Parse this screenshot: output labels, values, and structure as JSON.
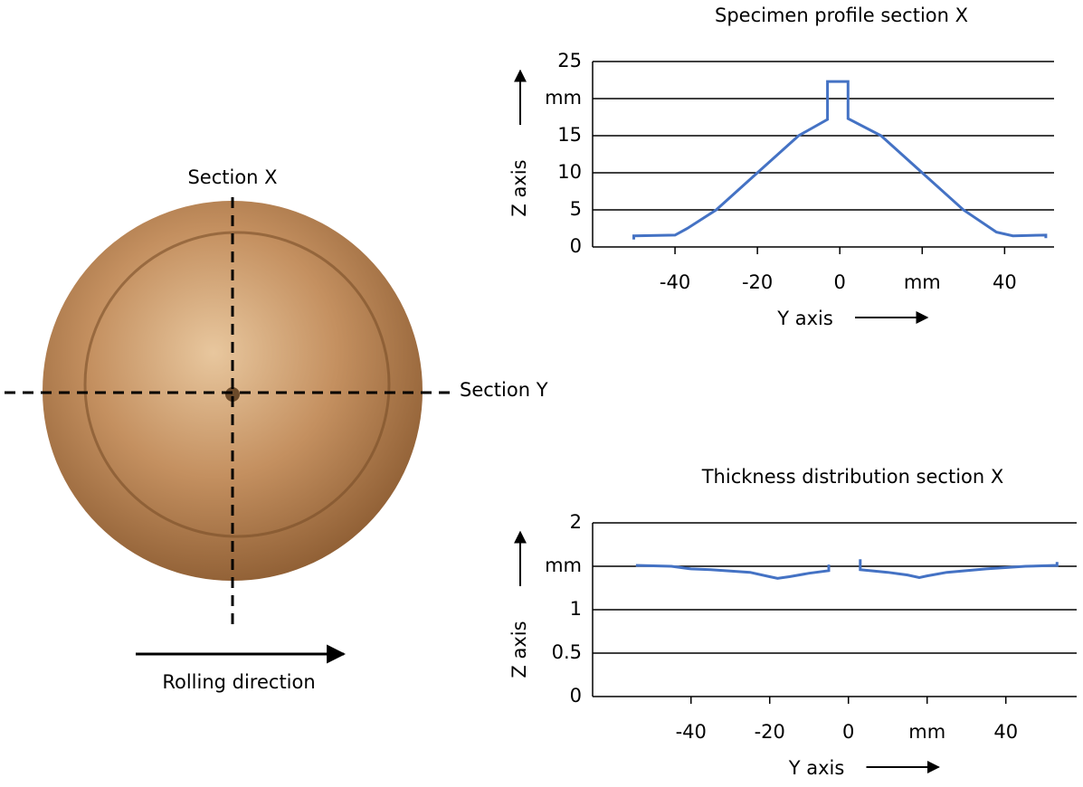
{
  "photo": {
    "section_x": "Section X",
    "section_y": "Section Y",
    "rolling": "Rolling direction"
  },
  "chart_data": [
    {
      "type": "line",
      "title": "Specimen profile section X",
      "x_label": "Y axis",
      "y_label": "Z axis",
      "color": "#4472c4",
      "grid": true,
      "x": [
        -50,
        -50,
        -40,
        -37,
        -30,
        -20,
        -10,
        -3,
        -3,
        2,
        2,
        10,
        20,
        30,
        38,
        42,
        50,
        50
      ],
      "values": [
        1,
        1.5,
        1.6,
        2.5,
        5,
        10,
        15,
        17.2,
        22.3,
        22.3,
        17.3,
        15,
        10,
        5,
        2,
        1.5,
        1.6,
        1.2
      ],
      "xlim": [
        -60,
        52
      ],
      "ylim": [
        0,
        25
      ],
      "xticks": [
        -40,
        -20,
        0,
        {
          "value": 20,
          "label": "mm"
        },
        40
      ],
      "yticks": [
        0,
        5,
        10,
        15,
        {
          "value": 20,
          "label": "mm"
        },
        25
      ]
    },
    {
      "type": "line",
      "title": "Thickness distribution section X",
      "x_label": "Y axis",
      "y_label": "Z axis",
      "color": "#4472c4",
      "grid": true,
      "x": [
        -54,
        -45,
        -40,
        -35,
        -25,
        -20,
        -18,
        -15,
        -10,
        -5,
        -5,
        0,
        3,
        3,
        10,
        15,
        18,
        20,
        25,
        35,
        45,
        53,
        53
      ],
      "values": [
        1.51,
        1.5,
        1.47,
        1.46,
        1.43,
        1.38,
        1.36,
        1.38,
        1.42,
        1.45,
        1.52,
        null,
        1.58,
        1.46,
        1.43,
        1.4,
        1.37,
        1.39,
        1.43,
        1.47,
        1.5,
        1.51,
        1.55
      ],
      "xlim": [
        -65,
        58
      ],
      "ylim": [
        0,
        2
      ],
      "xticks": [
        -40,
        -20,
        0,
        {
          "value": 20,
          "label": "mm"
        },
        40
      ],
      "yticks": [
        0,
        0.5,
        1,
        {
          "value": 1.5,
          "label": "mm"
        },
        2
      ]
    }
  ]
}
